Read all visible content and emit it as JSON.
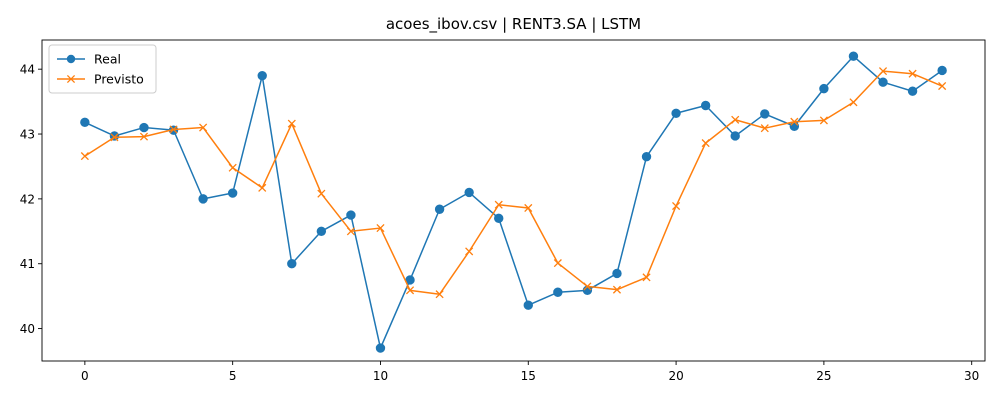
{
  "chart_data": {
    "type": "line",
    "title": "acoes_ibov.csv | RENT3.SA | LSTM",
    "xlabel": "",
    "ylabel": "",
    "xlim": [
      -1.45,
      30.45
    ],
    "ylim": [
      39.5,
      44.45
    ],
    "xticks": [
      0,
      5,
      10,
      15,
      20,
      25,
      30
    ],
    "yticks": [
      40,
      41,
      42,
      43,
      44
    ],
    "grid": false,
    "legend_position": "top-left",
    "x": [
      0,
      1,
      2,
      3,
      4,
      5,
      6,
      7,
      8,
      9,
      10,
      11,
      12,
      13,
      14,
      15,
      16,
      17,
      18,
      19,
      20,
      21,
      22,
      23,
      24,
      25,
      26,
      27,
      28,
      29
    ],
    "series": [
      {
        "name": "Real",
        "color": "#1f77b4",
        "marker": "circle",
        "values": [
          43.18,
          42.97,
          43.1,
          43.06,
          42.0,
          42.09,
          43.9,
          41.0,
          41.5,
          41.75,
          39.7,
          40.75,
          41.84,
          42.1,
          41.7,
          40.36,
          40.56,
          40.59,
          40.85,
          42.65,
          43.32,
          43.44,
          42.97,
          43.31,
          43.12,
          43.7,
          44.2,
          43.8,
          43.66,
          43.98
        ]
      },
      {
        "name": "Previsto",
        "color": "#ff7f0e",
        "marker": "x",
        "values": [
          42.66,
          42.95,
          42.96,
          43.07,
          43.1,
          42.48,
          42.17,
          43.16,
          42.08,
          41.5,
          41.55,
          40.59,
          40.53,
          41.19,
          41.91,
          41.86,
          41.01,
          40.65,
          40.6,
          40.79,
          41.89,
          42.86,
          43.22,
          43.09,
          43.19,
          43.21,
          43.49,
          43.97,
          43.93,
          43.74
        ]
      }
    ]
  }
}
